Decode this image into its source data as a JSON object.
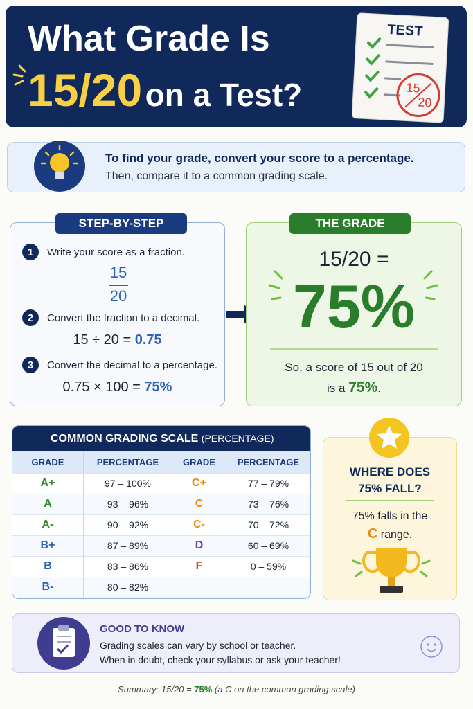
{
  "header": {
    "title_line1": "What Grade Is",
    "title_highlight": "15/20",
    "title_rest": "on a Test?",
    "paper_label": "TEST",
    "stamp_top": "15",
    "stamp_bottom": "20"
  },
  "intro": {
    "line1": "To find your grade, convert your score to a percentage.",
    "line2": "Then, compare it to a common grading scale."
  },
  "steps": {
    "heading": "STEP-BY-STEP",
    "items": [
      {
        "number": "1",
        "text": "Write your score as a fraction.",
        "numerator": "15",
        "denominator": "20"
      },
      {
        "number": "2",
        "text": "Convert the fraction to a decimal.",
        "expression": "15 ÷ 20 =",
        "result": "0.75"
      },
      {
        "number": "3",
        "text": "Convert the decimal to a percentage.",
        "expression": "0.75 × 100 =",
        "result": "75%"
      }
    ]
  },
  "grade": {
    "heading": "THE GRADE",
    "fraction": "15/20 =",
    "percent": "75%",
    "line1": "So, a score of 15 out of 20",
    "line2_prefix": "is a",
    "line2_value": "75%",
    "line2_suffix": "."
  },
  "scale": {
    "title": "COMMON GRADING SCALE",
    "title_suffix": "(PERCENTAGE)",
    "headers": [
      "GRADE",
      "PERCENTAGE",
      "GRADE",
      "PERCENTAGE"
    ],
    "left_rows": [
      {
        "grade": "A+",
        "range": "97 – 100%",
        "color": "#2e8b2e"
      },
      {
        "grade": "A",
        "range": "93 – 96%",
        "color": "#2e8b2e"
      },
      {
        "grade": "A-",
        "range": "90 – 92%",
        "color": "#2e8b2e"
      },
      {
        "grade": "B+",
        "range": "87 – 89%",
        "color": "#2a62b8"
      },
      {
        "grade": "B",
        "range": "83 – 86%",
        "color": "#2a62b8"
      },
      {
        "grade": "B-",
        "range": "80 – 82%",
        "color": "#2a62b8"
      }
    ],
    "right_rows": [
      {
        "grade": "C+",
        "range": "77 – 79%",
        "color": "#ec8a12"
      },
      {
        "grade": "C",
        "range": "73 – 76%",
        "color": "#ec8a12"
      },
      {
        "grade": "C-",
        "range": "70 – 72%",
        "color": "#ec8a12"
      },
      {
        "grade": "D",
        "range": "60 – 69%",
        "color": "#6b3fa0"
      },
      {
        "grade": "F",
        "range": "0 – 59%",
        "color": "#d9392b"
      }
    ]
  },
  "where": {
    "heading_line1": "WHERE DOES",
    "heading_line2": "75% FALL?",
    "line1": "75% falls in the",
    "grade": "C",
    "line2": "range."
  },
  "note": {
    "heading": "GOOD TO KNOW",
    "line1": "Grading scales can vary by school or teacher.",
    "line2": "When in doubt, check your syllabus or ask your teacher!"
  },
  "summary": {
    "prefix": "Summary:  15/20 =",
    "value": "75%",
    "suffix": "(a C on the common grading scale)"
  }
}
